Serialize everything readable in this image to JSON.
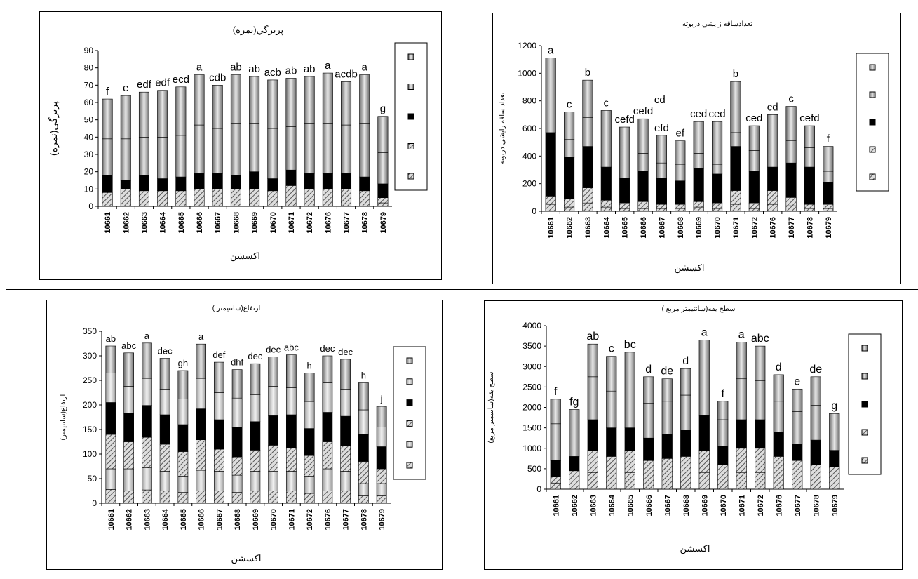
{
  "chart_data": [
    {
      "type": "bar",
      "stacked": true,
      "title": "پربرگي(نمره)",
      "xlabel": "اكسشن",
      "ylabel": "پربرگی(نمره)",
      "ylim": [
        0,
        90
      ],
      "yticks": [
        0,
        10,
        20,
        30,
        40,
        50,
        60,
        70,
        80,
        90
      ],
      "categories": [
        "10661",
        "10662",
        "10663",
        "10664",
        "10665",
        "10666",
        "10667",
        "10668",
        "10669",
        "10670",
        "10671",
        "10672",
        "10676",
        "10677",
        "10678",
        "10679"
      ],
      "series": [
        {
          "values": [
            3,
            3,
            3,
            3,
            3,
            3,
            3,
            3,
            3,
            3,
            3,
            3,
            3,
            3,
            3,
            2
          ]
        },
        {
          "values": [
            5,
            7,
            6,
            6,
            6,
            7,
            7,
            7,
            7,
            6,
            9,
            7,
            7,
            7,
            6,
            3
          ]
        },
        {
          "values": [
            10,
            5,
            9,
            7,
            8,
            9,
            9,
            8,
            10,
            7,
            9,
            9,
            9,
            9,
            8,
            8
          ]
        },
        {
          "values": [
            21,
            24,
            22,
            24,
            24,
            28,
            26,
            30,
            28,
            29,
            25,
            29,
            29,
            28,
            31,
            18
          ]
        },
        {
          "values": [
            23,
            25,
            26,
            27,
            28,
            29,
            25,
            28,
            27,
            28,
            28,
            27,
            29,
            25,
            28,
            21
          ]
        }
      ],
      "totals": [
        62,
        64,
        66,
        67,
        69,
        76,
        70,
        76,
        75,
        73,
        74,
        75,
        77,
        72,
        76,
        52
      ],
      "bar_labels": [
        "f",
        "e",
        "edf",
        "edf",
        "ecd",
        "a",
        "cdb",
        "ab",
        "ab",
        "acb",
        "ab",
        "ab",
        "a",
        "acdb",
        "a",
        "g"
      ],
      "legend_position": "right"
    },
    {
      "type": "bar",
      "stacked": true,
      "title": "تعدادساقه زايشي دربوته",
      "xlabel": "اكسشن",
      "ylabel": "تعداد ساقه زايشي دربوته",
      "ylim": [
        0,
        1200
      ],
      "yticks": [
        0,
        200,
        400,
        600,
        800,
        1000,
        1200
      ],
      "categories": [
        "10661",
        "10662",
        "10663",
        "10664",
        "10665",
        "10666",
        "10667",
        "10668",
        "10669",
        "10670",
        "10671",
        "10672",
        "10676",
        "10677",
        "10678",
        "10679"
      ],
      "series": [
        {
          "values": [
            50,
            30,
            60,
            30,
            20,
            20,
            20,
            20,
            30,
            20,
            50,
            20,
            50,
            40,
            20,
            20
          ]
        },
        {
          "values": [
            60,
            60,
            110,
            50,
            40,
            50,
            30,
            30,
            40,
            40,
            100,
            40,
            100,
            60,
            30,
            30
          ]
        },
        {
          "values": [
            460,
            300,
            300,
            240,
            180,
            220,
            190,
            170,
            240,
            210,
            320,
            230,
            170,
            250,
            270,
            160
          ]
        },
        {
          "values": [
            200,
            130,
            210,
            130,
            210,
            130,
            110,
            120,
            110,
            70,
            100,
            150,
            160,
            160,
            140,
            80
          ]
        },
        {
          "values": [
            340,
            200,
            270,
            280,
            160,
            250,
            200,
            170,
            230,
            310,
            370,
            180,
            220,
            250,
            160,
            180
          ]
        }
      ],
      "totals": [
        1110,
        720,
        950,
        730,
        610,
        670,
        550,
        510,
        650,
        650,
        940,
        620,
        700,
        760,
        620,
        470
      ],
      "bar_labels": [
        "a",
        "c",
        "b",
        "c",
        "cefd",
        "cefd",
        "efd",
        "ef",
        "ced",
        "ced",
        "b",
        "ced",
        "cd",
        "c",
        "cefd",
        "f"
      ],
      "extra_labels": {
        "5": "cd"
      },
      "legend_position": "right"
    },
    {
      "type": "bar",
      "stacked": true,
      "title": "ارتفاع(سانتيمتر )",
      "xlabel": "اكسشن",
      "ylabel": "ارتفاع(سانتیمتر)",
      "ylim": [
        0,
        350
      ],
      "yticks": [
        0,
        50,
        100,
        150,
        200,
        250,
        300,
        350
      ],
      "categories": [
        "10661",
        "10662",
        "10663",
        "10664",
        "10665",
        "10666",
        "10667",
        "10668",
        "10669",
        "10670",
        "10671",
        "10672",
        "10676",
        "10677",
        "10678",
        "10679"
      ],
      "series": [
        {
          "values": [
            28,
            25,
            27,
            25,
            22,
            25,
            25,
            22,
            25,
            25,
            25,
            20,
            25,
            25,
            15,
            15
          ]
        },
        {
          "values": [
            42,
            45,
            45,
            40,
            33,
            42,
            40,
            35,
            40,
            40,
            40,
            35,
            45,
            40,
            25,
            25
          ]
        },
        {
          "values": [
            70,
            55,
            62,
            55,
            50,
            62,
            45,
            37,
            43,
            53,
            48,
            42,
            55,
            52,
            45,
            30
          ]
        },
        {
          "values": [
            65,
            58,
            65,
            60,
            55,
            63,
            60,
            60,
            58,
            60,
            67,
            55,
            60,
            60,
            55,
            45
          ]
        },
        {
          "values": [
            60,
            55,
            55,
            52,
            52,
            62,
            55,
            60,
            55,
            60,
            55,
            55,
            60,
            55,
            50,
            40
          ]
        },
        {
          "values": [
            55,
            68,
            72,
            63,
            58,
            70,
            62,
            58,
            63,
            60,
            67,
            58,
            55,
            61,
            55,
            42
          ]
        }
      ],
      "totals": [
        320,
        306,
        326,
        295,
        270,
        324,
        287,
        272,
        284,
        298,
        302,
        265,
        300,
        293,
        245,
        197
      ],
      "bar_labels": [
        "ab",
        "abc",
        "a",
        "dec",
        "gh",
        "a",
        "def",
        "dhf",
        "dec",
        "dec",
        "abc",
        "h",
        "dec",
        "dec",
        "h",
        "j"
      ],
      "legend_position": "right"
    },
    {
      "type": "bar",
      "stacked": true,
      "title": "سطح يقه(سانتيمتر مربع )",
      "xlabel": "اكسشن",
      "ylabel": "سطح يقه(سانتيمتر مربع)",
      "ylim": [
        0,
        4000
      ],
      "yticks": [
        0,
        500,
        1000,
        1500,
        2000,
        2500,
        3000,
        3500,
        4000
      ],
      "categories": [
        "10661",
        "10662",
        "10663",
        "10664",
        "10665",
        "10666",
        "10667",
        "10668",
        "10669",
        "10670",
        "10671",
        "10672",
        "10676",
        "10677",
        "10678",
        "10679"
      ],
      "series": [
        {
          "values": [
            150,
            200,
            400,
            300,
            400,
            300,
            300,
            300,
            400,
            300,
            400,
            400,
            300,
            300,
            300,
            200
          ]
        },
        {
          "values": [
            150,
            250,
            550,
            500,
            550,
            400,
            450,
            500,
            550,
            300,
            600,
            600,
            500,
            400,
            300,
            350
          ]
        },
        {
          "values": [
            400,
            350,
            750,
            700,
            550,
            550,
            600,
            650,
            850,
            450,
            700,
            700,
            600,
            400,
            600,
            400
          ]
        },
        {
          "values": [
            900,
            600,
            1050,
            900,
            1000,
            850,
            800,
            850,
            750,
            650,
            1000,
            950,
            750,
            800,
            850,
            500
          ]
        },
        {
          "values": [
            600,
            550,
            800,
            850,
            850,
            650,
            550,
            650,
            1100,
            450,
            900,
            850,
            650,
            550,
            700,
            400
          ]
        }
      ],
      "totals": [
        2200,
        1950,
        3550,
        3250,
        3350,
        2750,
        2700,
        2950,
        3650,
        2150,
        3600,
        3500,
        2800,
        2450,
        2750,
        1850
      ],
      "bar_labels": [
        "f",
        "fg",
        "ab",
        "c",
        "bc",
        "d",
        "de",
        "d",
        "a",
        "f",
        "a",
        "abc",
        "d",
        "e",
        "de",
        "g"
      ],
      "legend_position": "right"
    }
  ]
}
